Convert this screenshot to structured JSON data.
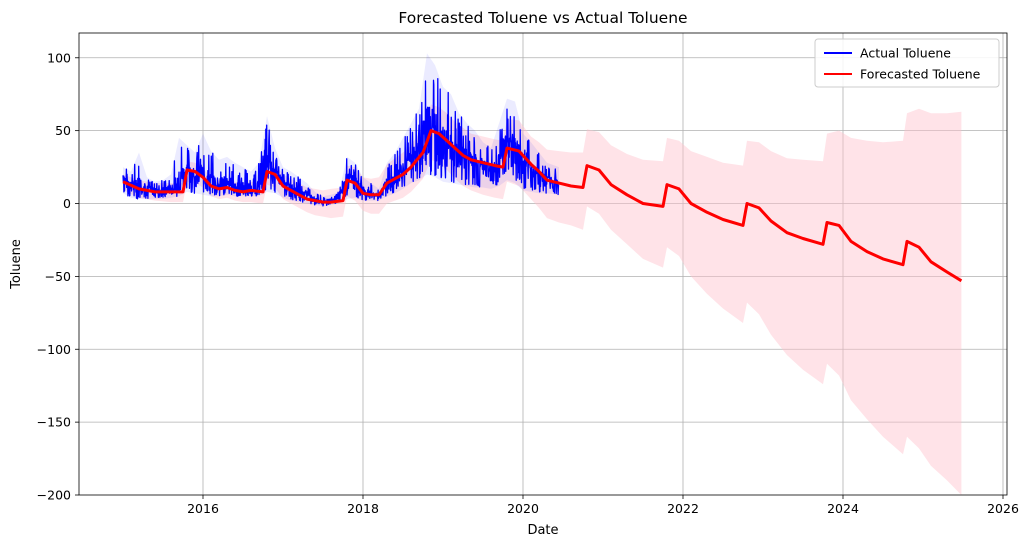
{
  "chart_data": {
    "type": "line",
    "title": "Forecasted Toluene vs Actual Toluene",
    "xlabel": "Date",
    "ylabel": "Toluene",
    "xlim": [
      2014.45,
      2026.05
    ],
    "ylim": [
      -200,
      117
    ],
    "xticks": [
      2016,
      2018,
      2020,
      2022,
      2024,
      2026
    ],
    "xtick_labels": [
      "2016",
      "2018",
      "2020",
      "2022",
      "2024",
      "2026"
    ],
    "yticks": [
      100,
      50,
      0,
      -50,
      -100,
      -150,
      -200
    ],
    "ytick_labels": [
      "100",
      "50",
      "0",
      "−50",
      "−100",
      "−150",
      "−200"
    ],
    "grid": true,
    "legend_position": "top-right",
    "colors": {
      "actual": "#0000ff",
      "forecast": "#ff0000",
      "band": "#ffc0cb"
    },
    "series": [
      {
        "name": "Actual Toluene",
        "color": "#0000ff",
        "x": [
          2015.0,
          2015.1,
          2015.2,
          2015.3,
          2015.4,
          2015.5,
          2015.6,
          2015.7,
          2015.8,
          2015.9,
          2016.0,
          2016.1,
          2016.2,
          2016.3,
          2016.4,
          2016.5,
          2016.6,
          2016.7,
          2016.8,
          2016.9,
          2017.0,
          2017.1,
          2017.2,
          2017.3,
          2017.4,
          2017.5,
          2017.6,
          2017.7,
          2017.8,
          2017.9,
          2018.0,
          2018.1,
          2018.2,
          2018.3,
          2018.4,
          2018.5,
          2018.6,
          2018.7,
          2018.8,
          2018.9,
          2019.0,
          2019.1,
          2019.2,
          2019.3,
          2019.4,
          2019.5,
          2019.6,
          2019.7,
          2019.8,
          2019.9,
          2020.0,
          2020.1,
          2020.2,
          2020.3,
          2020.45
        ],
        "y": [
          18,
          12,
          10,
          9,
          8,
          8,
          9,
          10,
          22,
          18,
          16,
          12,
          11,
          12,
          10,
          9,
          9,
          10,
          24,
          20,
          12,
          9,
          7,
          6,
          2,
          1,
          2,
          3,
          17,
          14,
          8,
          6,
          4,
          14,
          16,
          20,
          28,
          32,
          50,
          45,
          38,
          32,
          30,
          28,
          26,
          24,
          22,
          24,
          42,
          36,
          25,
          20,
          18,
          16,
          14
        ],
        "y_max": [
          25,
          22,
          35,
          18,
          15,
          16,
          20,
          45,
          40,
          35,
          48,
          36,
          30,
          32,
          28,
          25,
          22,
          28,
          60,
          38,
          25,
          22,
          18,
          14,
          8,
          5,
          6,
          8,
          32,
          28,
          18,
          14,
          10,
          28,
          35,
          45,
          55,
          65,
          103,
          95,
          80,
          75,
          62,
          55,
          50,
          42,
          38,
          55,
          72,
          70,
          48,
          42,
          35,
          28,
          25
        ],
        "y_min": [
          7,
          4,
          3,
          3,
          3,
          3,
          4,
          5,
          8,
          7,
          6,
          5,
          5,
          6,
          5,
          5,
          5,
          5,
          8,
          7,
          4,
          2,
          1,
          0,
          -1,
          -2,
          -1,
          0,
          3,
          4,
          2,
          2,
          2,
          5,
          7,
          10,
          14,
          16,
          20,
          18,
          15,
          14,
          13,
          12,
          11,
          11,
          10,
          12,
          16,
          14,
          9,
          8,
          7,
          7,
          6
        ]
      },
      {
        "name": "Forecasted Toluene",
        "color": "#ff0000",
        "x": [
          2015.0,
          2015.2,
          2015.4,
          2015.6,
          2015.75,
          2015.8,
          2015.9,
          2016.0,
          2016.1,
          2016.2,
          2016.3,
          2016.4,
          2016.5,
          2016.6,
          2016.75,
          2016.8,
          2016.9,
          2017.0,
          2017.1,
          2017.2,
          2017.3,
          2017.4,
          2017.5,
          2017.6,
          2017.75,
          2017.8,
          2017.9,
          2018.0,
          2018.1,
          2018.2,
          2018.3,
          2018.4,
          2018.5,
          2018.6,
          2018.75,
          2018.85,
          2018.95,
          2019.05,
          2019.15,
          2019.25,
          2019.35,
          2019.5,
          2019.65,
          2019.75,
          2019.8,
          2019.95,
          2020.1,
          2020.2,
          2020.3,
          2020.45,
          2020.6,
          2020.75,
          2020.8,
          2020.95,
          2021.1,
          2021.3,
          2021.5,
          2021.75,
          2021.8,
          2021.95,
          2022.1,
          2022.3,
          2022.5,
          2022.75,
          2022.8,
          2022.95,
          2023.1,
          2023.3,
          2023.5,
          2023.75,
          2023.8,
          2023.95,
          2024.1,
          2024.3,
          2024.5,
          2024.75,
          2024.8,
          2024.95,
          2025.1,
          2025.3,
          2025.48
        ],
        "y": [
          15,
          10,
          8,
          8,
          8,
          23,
          22,
          18,
          12,
          10,
          11,
          9,
          8,
          9,
          8,
          22,
          20,
          12,
          9,
          6,
          3,
          2,
          1,
          1,
          2,
          16,
          14,
          7,
          6,
          6,
          14,
          17,
          20,
          25,
          35,
          50,
          48,
          43,
          38,
          33,
          30,
          28,
          26,
          25,
          38,
          36,
          27,
          22,
          16,
          14,
          12,
          11,
          26,
          23,
          13,
          6,
          0,
          -2,
          13,
          10,
          0,
          -6,
          -11,
          -15,
          0,
          -3,
          -12,
          -20,
          -24,
          -28,
          -13,
          -15,
          -26,
          -33,
          -38,
          -42,
          -26,
          -30,
          -40,
          -47,
          -53
        ],
        "upper": [
          20,
          16,
          14,
          14,
          14,
          29,
          28,
          24,
          18,
          16,
          17,
          15,
          14,
          15,
          14,
          30,
          28,
          20,
          17,
          14,
          11,
          10,
          9,
          10,
          11,
          26,
          25,
          18,
          17,
          18,
          27,
          31,
          35,
          40,
          52,
          68,
          66,
          62,
          56,
          52,
          48,
          46,
          44,
          43,
          58,
          57,
          46,
          42,
          37,
          36,
          35,
          35,
          51,
          49,
          40,
          34,
          30,
          29,
          45,
          43,
          36,
          32,
          28,
          26,
          43,
          42,
          36,
          31,
          30,
          29,
          48,
          50,
          45,
          43,
          42,
          43,
          62,
          65,
          62,
          62,
          63
        ],
        "lower": [
          9,
          4,
          2,
          1,
          1,
          15,
          14,
          11,
          5,
          3,
          4,
          2,
          1,
          1,
          0,
          13,
          11,
          3,
          0,
          -3,
          -6,
          -8,
          -9,
          -10,
          -9,
          5,
          2,
          -5,
          -7,
          -7,
          0,
          2,
          4,
          8,
          17,
          30,
          28,
          23,
          17,
          12,
          9,
          6,
          4,
          3,
          15,
          12,
          3,
          -3,
          -10,
          -13,
          -15,
          -18,
          -2,
          -7,
          -18,
          -28,
          -38,
          -44,
          -30,
          -36,
          -50,
          -62,
          -72,
          -82,
          -68,
          -76,
          -90,
          -104,
          -114,
          -124,
          -110,
          -118,
          -135,
          -148,
          -160,
          -172,
          -160,
          -168,
          -180,
          -190,
          -200
        ]
      }
    ]
  }
}
